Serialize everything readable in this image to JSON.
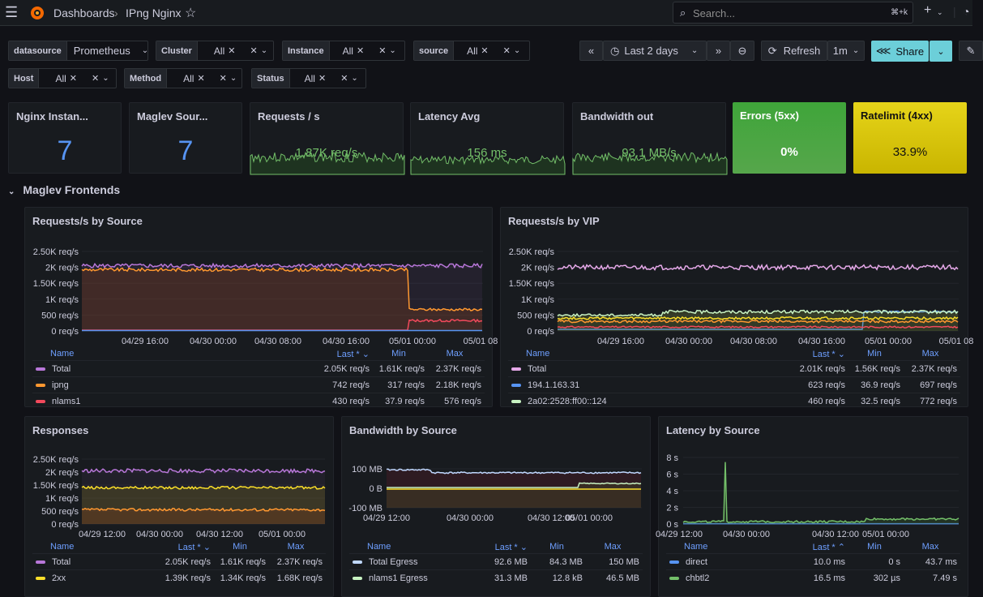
{
  "header": {
    "breadcrumb_root": "Dashboards",
    "breadcrumb_sep": "›",
    "dashboard_title": "IPng Nginx",
    "search_placeholder": "Search...",
    "search_shortcut": "⌘+k",
    "add_label": "+"
  },
  "variables": [
    {
      "label": "datasource",
      "value": "Prometheus"
    },
    {
      "label": "Cluster",
      "value": "All"
    },
    {
      "label": "Instance",
      "value": "All"
    },
    {
      "label": "source",
      "value": "All"
    },
    {
      "label": "Host",
      "value": "All"
    },
    {
      "label": "Method",
      "value": "All"
    },
    {
      "label": "Status",
      "value": "All"
    }
  ],
  "time": {
    "range": "Last 2 days",
    "refresh_label": "Refresh",
    "refresh_interval": "1m",
    "share_label": "Share"
  },
  "stats": [
    {
      "title": "Nginx Instan...",
      "value": "7"
    },
    {
      "title": "Maglev Sour...",
      "value": "7"
    },
    {
      "title": "Requests / s",
      "value": "1.87K req/s"
    },
    {
      "title": "Latency Avg",
      "value": "156 ms"
    },
    {
      "title": "Bandwidth out",
      "value": "93.1 MB/s"
    },
    {
      "title": "Errors (5xx)",
      "value": "0%",
      "bg": "#3fa53a"
    },
    {
      "title": "Ratelimit (4xx)",
      "value": "33.9%",
      "bg": "#d9c40f"
    }
  ],
  "section_title": "Maglev Frontends",
  "legend_cols": {
    "name": "Name",
    "last": "Last *",
    "min": "Min",
    "max": "Max"
  },
  "panels": {
    "rps_source": {
      "title": "Requests/s by Source",
      "yticks": [
        "2.50K req/s",
        "2K req/s",
        "1.50K req/s",
        "1K req/s",
        "500 req/s",
        "0 req/s"
      ],
      "xticks": [
        "04/29 16:00",
        "04/30 00:00",
        "04/30 08:00",
        "04/30 16:00",
        "05/01 00:00",
        "05/01 08"
      ],
      "rows": [
        {
          "name": "Total",
          "color": "#b877d9",
          "last": "2.05K req/s",
          "min": "1.61K req/s",
          "max": "2.37K req/s"
        },
        {
          "name": "ipng",
          "color": "#ff9830",
          "last": "742 req/s",
          "min": "317 req/s",
          "max": "2.18K req/s"
        },
        {
          "name": "nlams1",
          "color": "#f2495c",
          "last": "430 req/s",
          "min": "37.9 req/s",
          "max": "576 req/s"
        }
      ]
    },
    "rps_vip": {
      "title": "Requests/s by VIP",
      "yticks": [
        "2.50K req/s",
        "2K req/s",
        "1.50K req/s",
        "1K req/s",
        "500 req/s",
        "0 req/s"
      ],
      "xticks": [
        "04/29 16:00",
        "04/30 00:00",
        "04/30 08:00",
        "04/30 16:00",
        "05/01 00:00",
        "05/01 08"
      ],
      "rows": [
        {
          "name": "Total",
          "color": "#e5a8e8",
          "last": "2.01K req/s",
          "min": "1.56K req/s",
          "max": "2.37K req/s"
        },
        {
          "name": "194.1.163.31",
          "color": "#5794f2",
          "last": "623 req/s",
          "min": "36.9 req/s",
          "max": "697 req/s"
        },
        {
          "name": "2a02:2528:ff00::124",
          "color": "#c8f2c2",
          "last": "460 req/s",
          "min": "32.5 req/s",
          "max": "772 req/s"
        }
      ]
    },
    "responses": {
      "title": "Responses",
      "yticks": [
        "2.50K req/s",
        "2K req/s",
        "1.50K req/s",
        "1K req/s",
        "500 req/s",
        "0 req/s"
      ],
      "xticks": [
        "04/29 12:00",
        "04/30 00:00",
        "04/30 12:00",
        "05/01 00:00"
      ],
      "rows": [
        {
          "name": "Total",
          "color": "#b877d9",
          "last": "2.05K req/s",
          "min": "1.61K req/s",
          "max": "2.37K req/s"
        },
        {
          "name": "2xx",
          "color": "#fade2a",
          "last": "1.39K req/s",
          "min": "1.34K req/s",
          "max": "1.68K req/s"
        }
      ]
    },
    "bandwidth": {
      "title": "Bandwidth by Source",
      "yticks": [
        "100 MB",
        "0 B",
        "-100 MB"
      ],
      "xticks": [
        "04/29 12:00",
        "04/30 00:00",
        "04/30 12:00",
        "05/01 00:00"
      ],
      "rows": [
        {
          "name": "Total Egress",
          "color": "#c0d8ff",
          "last": "92.6 MB",
          "min": "84.3 MB",
          "max": "150 MB"
        },
        {
          "name": "nlams1 Egress",
          "color": "#c8f2c2",
          "last": "31.3 MB",
          "min": "12.8 kB",
          "max": "46.5 MB"
        }
      ]
    },
    "latency": {
      "title": "Latency by Source",
      "yticks": [
        "8 s",
        "6 s",
        "4 s",
        "2 s",
        "0 s"
      ],
      "xticks": [
        "04/29 12:00",
        "04/30 00:00",
        "04/30 12:00",
        "05/01 00:00"
      ],
      "rows": [
        {
          "name": "direct",
          "color": "#5794f2",
          "last": "10.0 ms",
          "min": "0 s",
          "max": "43.7 ms"
        },
        {
          "name": "chbtl2",
          "color": "#73bf69",
          "last": "16.5 ms",
          "min": "302 µs",
          "max": "7.49 s"
        }
      ]
    }
  }
}
